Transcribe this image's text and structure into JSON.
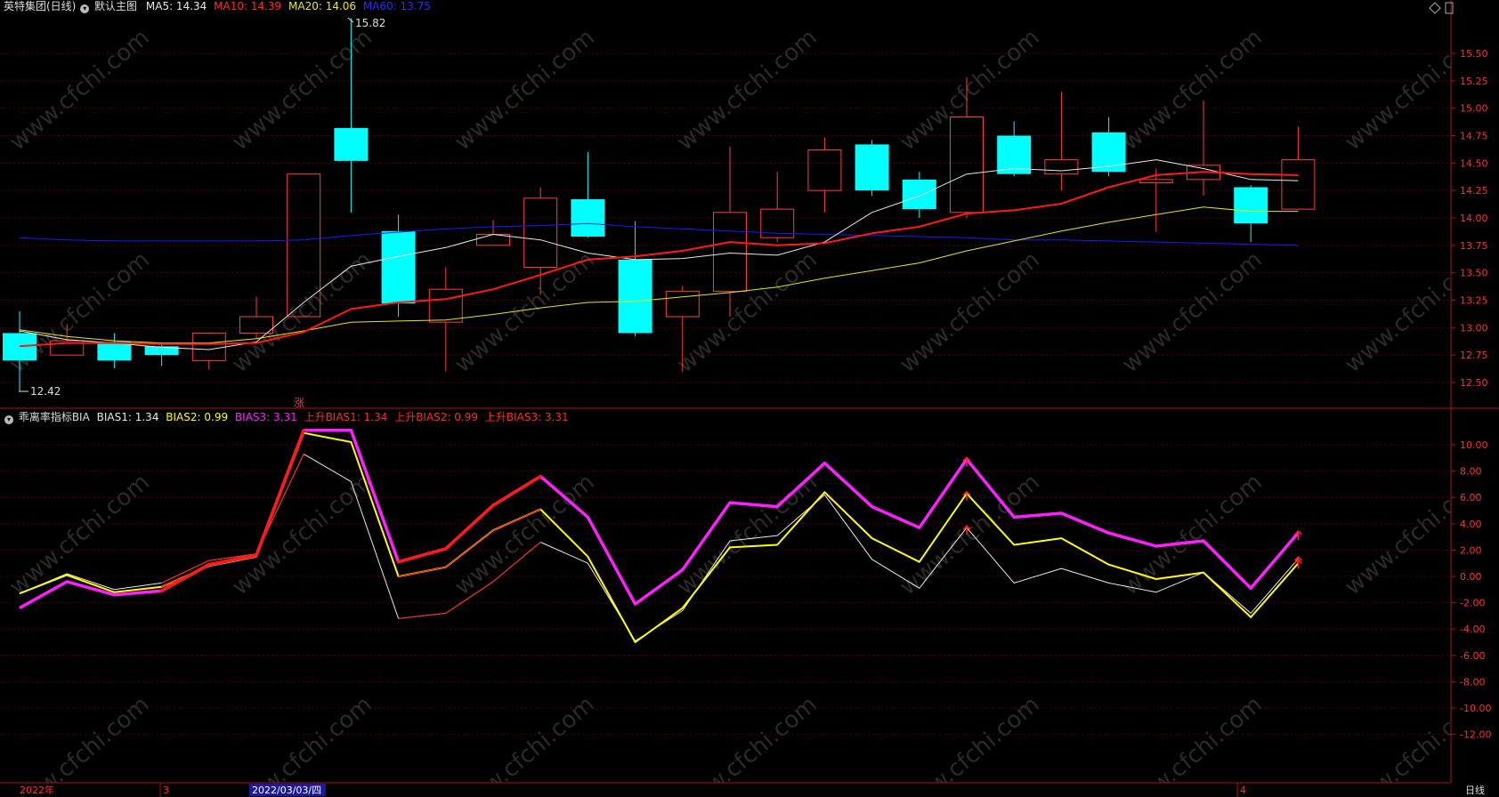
{
  "main_header": {
    "stock": "英特集团(日线)",
    "chart_name": "默认主图",
    "ma5_label": "MA5: 14.34",
    "ma10_label": "MA10: 14.39",
    "ma20_label": "MA20: 14.06",
    "ma60_label": "MA60: 13.75",
    "icon": "settings-circle-icon"
  },
  "sub_header": {
    "indicator": "乖离率指标BIA",
    "bias1_label": "BIAS1: 1.34",
    "bias2_label": "BIAS2: 0.99",
    "bias3_label": "BIAS3: 3.31",
    "up_bias1_label": "上升BIAS1: 1.34",
    "up_bias2_label": "上升BIAS2: 0.99",
    "up_bias3_label": "上升BIAS3: 3.31"
  },
  "labels": {
    "high_marker": "15.82",
    "low_marker": "12.42",
    "zhang": "涨",
    "period": "日线"
  },
  "bottom_axis": {
    "year_label": "2022年",
    "month_3": "3",
    "date_selected": "2022/03/03/四",
    "month_4": "4"
  },
  "colors": {
    "up": "#ff3c3c",
    "down": "#00ffff",
    "ma5": "#e8e8e8",
    "ma10": "#ff1a1a",
    "ma20": "#e8e800",
    "ma60": "#1a1aff",
    "bias1": "#e8e8e8",
    "bias2": "#ffff00",
    "bias3": "#ff20ff",
    "axis": "#b01010"
  },
  "chart_data": [
    {
      "type": "candlestick",
      "title": "英特集团(日线)",
      "y_ticks": [
        12.5,
        12.75,
        13.0,
        13.25,
        13.5,
        13.75,
        14.0,
        14.25,
        14.5,
        14.75,
        15.0,
        15.25,
        15.5
      ],
      "candles": [
        {
          "o": 12.95,
          "h": 13.15,
          "l": 12.42,
          "c": 12.7
        },
        {
          "o": 12.75,
          "h": 13.03,
          "l": 12.75,
          "c": 12.88
        },
        {
          "o": 12.87,
          "h": 12.95,
          "l": 12.63,
          "c": 12.7
        },
        {
          "o": 12.83,
          "h": 12.85,
          "l": 12.65,
          "c": 12.75
        },
        {
          "o": 12.7,
          "h": 12.95,
          "l": 12.62,
          "c": 12.95
        },
        {
          "o": 12.95,
          "h": 13.28,
          "l": 12.9,
          "c": 13.1
        },
        {
          "o": 13.1,
          "h": 14.4,
          "l": 13.1,
          "c": 14.4
        },
        {
          "o": 14.82,
          "h": 15.82,
          "l": 14.05,
          "c": 14.52
        },
        {
          "o": 13.88,
          "h": 14.03,
          "l": 13.1,
          "c": 13.22
        },
        {
          "o": 13.05,
          "h": 13.55,
          "l": 12.6,
          "c": 13.35
        },
        {
          "o": 13.75,
          "h": 13.98,
          "l": 13.75,
          "c": 13.85
        },
        {
          "o": 13.55,
          "h": 14.28,
          "l": 13.3,
          "c": 14.18
        },
        {
          "o": 14.17,
          "h": 14.6,
          "l": 13.82,
          "c": 13.83
        },
        {
          "o": 13.62,
          "h": 13.97,
          "l": 12.92,
          "c": 12.95
        },
        {
          "o": 13.1,
          "h": 13.38,
          "l": 12.6,
          "c": 13.33
        },
        {
          "o": 13.33,
          "h": 14.65,
          "l": 13.1,
          "c": 14.05
        },
        {
          "o": 13.82,
          "h": 14.42,
          "l": 13.78,
          "c": 14.08
        },
        {
          "o": 14.25,
          "h": 14.73,
          "l": 14.05,
          "c": 14.62
        },
        {
          "o": 14.67,
          "h": 14.71,
          "l": 14.2,
          "c": 14.25
        },
        {
          "o": 14.35,
          "h": 14.42,
          "l": 14.0,
          "c": 14.08
        },
        {
          "o": 14.05,
          "h": 15.28,
          "l": 14.0,
          "c": 14.92
        },
        {
          "o": 14.75,
          "h": 14.88,
          "l": 14.38,
          "c": 14.4
        },
        {
          "o": 14.4,
          "h": 15.15,
          "l": 14.25,
          "c": 14.53
        },
        {
          "o": 14.78,
          "h": 14.92,
          "l": 14.38,
          "c": 14.42
        },
        {
          "o": 14.32,
          "h": 14.45,
          "l": 13.87,
          "c": 14.35
        },
        {
          "o": 14.35,
          "h": 15.07,
          "l": 14.2,
          "c": 14.48
        },
        {
          "o": 14.28,
          "h": 14.3,
          "l": 13.78,
          "c": 13.95
        },
        {
          "o": 14.08,
          "h": 14.83,
          "l": 14.08,
          "c": 14.53
        }
      ],
      "ma5": [
        12.97,
        12.89,
        12.86,
        12.82,
        12.8,
        12.87,
        13.23,
        13.56,
        13.65,
        13.73,
        13.85,
        13.8,
        13.68,
        13.62,
        13.63,
        13.68,
        13.66,
        13.78,
        14.05,
        14.2,
        14.4,
        14.45,
        14.43,
        14.47,
        14.53,
        14.45,
        14.35,
        14.34
      ],
      "ma10": [
        12.83,
        12.86,
        12.86,
        12.85,
        12.85,
        12.86,
        12.96,
        13.17,
        13.23,
        13.26,
        13.35,
        13.48,
        13.62,
        13.65,
        13.7,
        13.78,
        13.75,
        13.77,
        13.86,
        13.92,
        14.04,
        14.07,
        14.13,
        14.28,
        14.39,
        14.42,
        14.4,
        14.39
      ],
      "ma20": [
        12.98,
        12.92,
        12.88,
        12.86,
        12.86,
        12.9,
        12.97,
        13.05,
        13.06,
        13.07,
        13.12,
        13.18,
        13.23,
        13.24,
        13.28,
        13.32,
        13.37,
        13.45,
        13.52,
        13.59,
        13.7,
        13.79,
        13.88,
        13.96,
        14.03,
        14.1,
        14.06,
        14.06
      ],
      "ma60": [
        13.82,
        13.8,
        13.79,
        13.79,
        13.79,
        13.79,
        13.8,
        13.84,
        13.87,
        13.9,
        13.92,
        13.93,
        13.95,
        13.92,
        13.9,
        13.88,
        13.86,
        13.85,
        13.84,
        13.83,
        13.82,
        13.8,
        13.8,
        13.79,
        13.78,
        13.77,
        13.76,
        13.75
      ]
    },
    {
      "type": "line",
      "title": "乖离率指标BIA",
      "y_ticks": [
        -12,
        -10,
        -8,
        -6,
        -4,
        -2,
        0,
        2,
        4,
        6,
        8,
        10
      ],
      "series": [
        {
          "name": "BIAS1",
          "values": [
            -1.3,
            0.2,
            -1.0,
            -0.5,
            1.2,
            1.7,
            9.3,
            7.2,
            -3.2,
            -2.8,
            -0.4,
            2.6,
            1.0,
            -4.9,
            -2.6,
            2.7,
            3.1,
            6.2,
            1.3,
            -0.9,
            3.7,
            -0.5,
            0.6,
            -0.5,
            -1.2,
            0.3,
            -2.8,
            1.34
          ]
        },
        {
          "name": "BIAS2",
          "values": [
            -1.3,
            0.1,
            -1.2,
            -0.8,
            0.8,
            1.5,
            10.9,
            10.2,
            0.0,
            0.7,
            3.5,
            5.1,
            1.5,
            -5.0,
            -2.4,
            2.2,
            2.4,
            6.4,
            2.9,
            1.1,
            6.3,
            2.4,
            2.9,
            0.9,
            -0.2,
            0.3,
            -3.1,
            0.99
          ]
        },
        {
          "name": "BIAS3",
          "values": [
            -2.4,
            -0.4,
            -1.4,
            -1.1,
            0.9,
            1.6,
            11.1,
            11.1,
            1.1,
            2.1,
            5.4,
            7.6,
            4.5,
            -2.1,
            0.5,
            5.6,
            5.3,
            8.6,
            5.3,
            3.7,
            8.9,
            4.5,
            4.8,
            3.3,
            2.3,
            2.7,
            -0.9,
            3.31
          ]
        }
      ]
    }
  ]
}
